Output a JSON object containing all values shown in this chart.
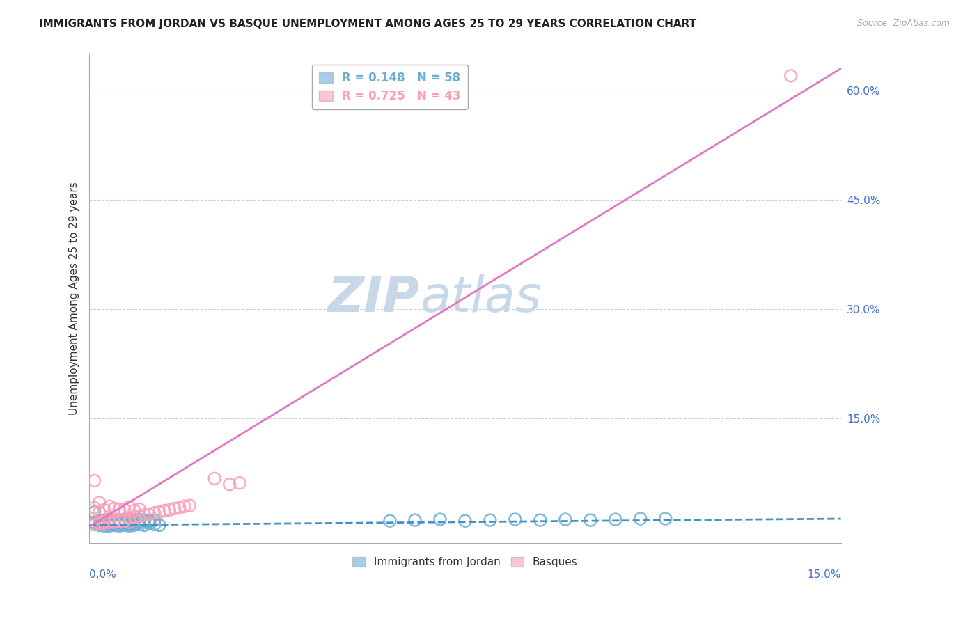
{
  "title": "IMMIGRANTS FROM JORDAN VS BASQUE UNEMPLOYMENT AMONG AGES 25 TO 29 YEARS CORRELATION CHART",
  "source": "Source: ZipAtlas.com",
  "ylabel": "Unemployment Among Ages 25 to 29 years",
  "xlabel_bottom_left": "0.0%",
  "xlabel_bottom_right": "15.0%",
  "legend_entries": [
    {
      "label": "R = 0.148   N = 58",
      "color": "#6baed6"
    },
    {
      "label": "R = 0.725   N = 43",
      "color": "#fa9fb5"
    }
  ],
  "legend_bottom": [
    {
      "label": "Immigrants from Jordan",
      "color": "#6baed6"
    },
    {
      "label": "Basques",
      "color": "#fa9fb5"
    }
  ],
  "xlim": [
    0.0,
    0.15
  ],
  "ylim": [
    -0.02,
    0.65
  ],
  "yticks": [
    0.0,
    0.15,
    0.3,
    0.45,
    0.6
  ],
  "ytick_labels": [
    "",
    "15.0%",
    "30.0%",
    "45.0%",
    "60.0%"
  ],
  "title_fontsize": 11,
  "source_fontsize": 9,
  "watermark_zip": "ZIP",
  "watermark_atlas": "atlas",
  "watermark_color": "#c8d8e8",
  "watermark_fontsize": 52,
  "blue_scatter_x": [
    0.001,
    0.002,
    0.003,
    0.003,
    0.004,
    0.004,
    0.005,
    0.005,
    0.006,
    0.006,
    0.007,
    0.007,
    0.008,
    0.008,
    0.009,
    0.009,
    0.01,
    0.011,
    0.012,
    0.013,
    0.014,
    0.001,
    0.002,
    0.003,
    0.004,
    0.005,
    0.006,
    0.007,
    0.008,
    0.009,
    0.01,
    0.011,
    0.012,
    0.001,
    0.002,
    0.003,
    0.004,
    0.005,
    0.006,
    0.007,
    0.008,
    0.009,
    0.01,
    0.011,
    0.012,
    0.013,
    0.06,
    0.065,
    0.07,
    0.075,
    0.08,
    0.085,
    0.09,
    0.095,
    0.1,
    0.105,
    0.11,
    0.115
  ],
  "blue_scatter_y": [
    0.005,
    0.004,
    0.003,
    0.006,
    0.005,
    0.003,
    0.004,
    0.006,
    0.003,
    0.005,
    0.004,
    0.006,
    0.005,
    0.003,
    0.004,
    0.006,
    0.005,
    0.004,
    0.006,
    0.005,
    0.004,
    0.022,
    0.01,
    0.011,
    0.012,
    0.01,
    0.011,
    0.012,
    0.01,
    0.011,
    0.012,
    0.011,
    0.01,
    0.008,
    0.007,
    0.009,
    0.008,
    0.007,
    0.009,
    0.008,
    0.007,
    0.009,
    0.008,
    0.01,
    0.009,
    0.011,
    0.01,
    0.011,
    0.012,
    0.01,
    0.011,
    0.012,
    0.011,
    0.012,
    0.011,
    0.012,
    0.013,
    0.013
  ],
  "pink_scatter_x": [
    0.001,
    0.002,
    0.003,
    0.004,
    0.005,
    0.006,
    0.007,
    0.008,
    0.009,
    0.01,
    0.011,
    0.012,
    0.013,
    0.014,
    0.015,
    0.016,
    0.017,
    0.018,
    0.019,
    0.02,
    0.001,
    0.002,
    0.003,
    0.004,
    0.005,
    0.006,
    0.007,
    0.008,
    0.009,
    0.01,
    0.002,
    0.003,
    0.004,
    0.005,
    0.006,
    0.007,
    0.008,
    0.028,
    0.03,
    0.025,
    0.001,
    0.002,
    0.14
  ],
  "pink_scatter_y": [
    0.005,
    0.006,
    0.007,
    0.008,
    0.009,
    0.01,
    0.012,
    0.013,
    0.015,
    0.016,
    0.018,
    0.019,
    0.021,
    0.022,
    0.024,
    0.025,
    0.027,
    0.028,
    0.03,
    0.031,
    0.028,
    0.022,
    0.025,
    0.03,
    0.027,
    0.026,
    0.025,
    0.029,
    0.024,
    0.026,
    0.008,
    0.009,
    0.01,
    0.008,
    0.009,
    0.01,
    0.008,
    0.06,
    0.062,
    0.068,
    0.065,
    0.035,
    0.62
  ],
  "blue_line_x": [
    0.0,
    0.15
  ],
  "blue_line_y": [
    0.004,
    0.013
  ],
  "pink_line_x": [
    0.0,
    0.15
  ],
  "pink_line_y": [
    0.002,
    0.63
  ],
  "grid_color": "#d0d0d0",
  "blue_color": "#6baed6",
  "pink_color": "#fa9fb5",
  "blue_line_color": "#4292c6",
  "pink_line_color": "#e377c2",
  "bg_color": "#ffffff"
}
